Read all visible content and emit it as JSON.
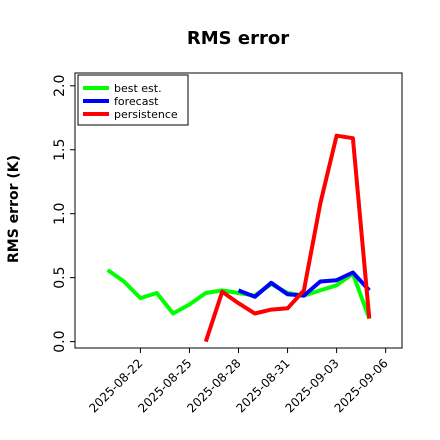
{
  "chart_data": {
    "type": "line",
    "title": "RMS error",
    "xlabel": "",
    "ylabel": "RMS error (K)",
    "ylim": [
      -0.05,
      2.1
    ],
    "xlim": [
      "2025-08-18",
      "2025-09-07"
    ],
    "yticks": [
      "0.0",
      "0.5",
      "1.0",
      "1.5",
      "2.0"
    ],
    "ytick_values": [
      0.0,
      0.5,
      1.0,
      1.5,
      2.0
    ],
    "xticks": [
      {
        "date": "2025-08-22",
        "label": "2025-08-22",
        "color": "#000000"
      },
      {
        "date": "2025-08-25",
        "label": "2025-08-25",
        "color": "#000000"
      },
      {
        "date": "2025-08-28",
        "label": "2025-08-28",
        "color": "#228B22"
      },
      {
        "date": "2025-08-31",
        "label": "2025-08-31",
        "color": "#000000"
      },
      {
        "date": "2025-09-03",
        "label": "2025-09-03",
        "color": "#000000"
      },
      {
        "date": "2025-09-06",
        "label": "2025-09-06",
        "color": "#000000"
      }
    ],
    "grid": false,
    "legend_position": "top-left",
    "series": [
      {
        "name": "best est.",
        "color": "#00ff00",
        "points": [
          [
            "2025-08-20",
            0.56
          ],
          [
            "2025-08-21",
            0.47
          ],
          [
            "2025-08-22",
            0.34
          ],
          [
            "2025-08-23",
            0.38
          ],
          [
            "2025-08-24",
            0.22
          ],
          [
            "2025-08-25",
            0.29
          ],
          [
            "2025-08-26",
            0.38
          ],
          [
            "2025-08-27",
            0.4
          ],
          [
            "2025-08-28",
            0.38
          ],
          [
            "2025-08-29",
            0.36
          ],
          [
            "2025-08-30",
            0.45
          ],
          [
            "2025-08-31",
            0.38
          ],
          [
            "2025-09-01",
            0.36
          ],
          [
            "2025-09-02",
            0.4
          ],
          [
            "2025-09-03",
            0.44
          ],
          [
            "2025-09-04",
            0.53
          ],
          [
            "2025-09-05",
            0.18
          ]
        ]
      },
      {
        "name": "forecast",
        "color": "#0000ff",
        "points": [
          [
            "2025-08-28",
            0.4
          ],
          [
            "2025-08-29",
            0.35
          ],
          [
            "2025-08-30",
            0.46
          ],
          [
            "2025-08-31",
            0.37
          ],
          [
            "2025-09-01",
            0.36
          ],
          [
            "2025-09-02",
            0.47
          ],
          [
            "2025-09-03",
            0.48
          ],
          [
            "2025-09-04",
            0.54
          ],
          [
            "2025-09-05",
            0.4
          ]
        ]
      },
      {
        "name": "persistence",
        "color": "#ff0000",
        "points": [
          [
            "2025-08-26",
            0.0
          ],
          [
            "2025-08-27",
            0.39
          ],
          [
            "2025-08-28",
            0.3
          ],
          [
            "2025-08-29",
            0.22
          ],
          [
            "2025-08-30",
            0.25
          ],
          [
            "2025-08-31",
            0.26
          ],
          [
            "2025-09-01",
            0.4
          ],
          [
            "2025-09-02",
            1.08
          ],
          [
            "2025-09-03",
            1.61
          ],
          [
            "2025-09-04",
            1.59
          ],
          [
            "2025-09-05",
            0.18
          ]
        ]
      }
    ]
  }
}
